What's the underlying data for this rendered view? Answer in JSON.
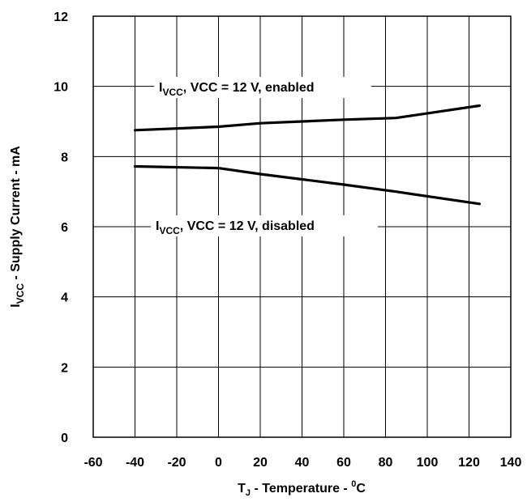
{
  "chart_data": {
    "type": "line",
    "xlim": [
      -60,
      140
    ],
    "ylim": [
      0,
      12
    ],
    "x_ticks": [
      "-60",
      "-40",
      "-20",
      "0",
      "20",
      "40",
      "60",
      "80",
      "100",
      "120",
      "140"
    ],
    "y_ticks": [
      "0",
      "2",
      "4",
      "6",
      "8",
      "10",
      "12"
    ],
    "xlabel": {
      "pre": "T",
      "sub": "J",
      "mid": " - Temperature - ",
      "sup": "0",
      "post": "C"
    },
    "ylabel": {
      "pre": "I",
      "sub": "VCC",
      "post": " - Supply Current - mA"
    },
    "grid": true,
    "series": [
      {
        "name": {
          "pre": "I",
          "sub": "VCC",
          "post": ", VCC = 12 V, enabled"
        },
        "x": [
          -40,
          0,
          20,
          40,
          60,
          85,
          125
        ],
        "y": [
          8.75,
          8.85,
          8.95,
          9.0,
          9.05,
          9.1,
          9.45
        ]
      },
      {
        "name": {
          "pre": "I",
          "sub": "VCC",
          "post": ", VCC = 12 V, disabled"
        },
        "x": [
          -40,
          0,
          20,
          40,
          60,
          85,
          125
        ],
        "y": [
          7.72,
          7.67,
          7.5,
          7.35,
          7.2,
          7.0,
          6.65
        ]
      }
    ]
  }
}
